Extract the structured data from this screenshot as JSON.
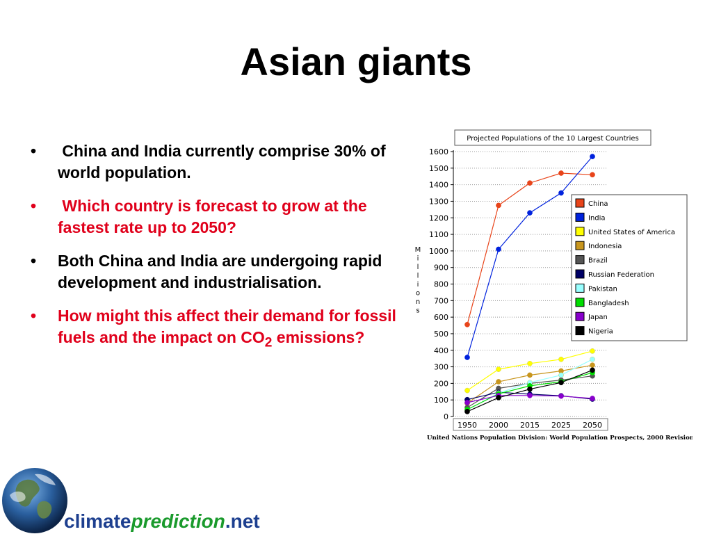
{
  "slide": {
    "title": "Asian giants",
    "bullets": [
      {
        "text": "China and India currently comprise 30% of world population.",
        "color": "#000000"
      },
      {
        "text": "Which country is forecast to grow at the fastest rate up to 2050?",
        "color": "#e0001b"
      },
      {
        "text": "Both China and India are undergoing rapid development and industrialisation.",
        "color": "#000000"
      },
      {
        "text_before": "How might this affect their demand for fossil fuels and the impact on CO",
        "subscript": "2",
        "text_after": " emissions?",
        "color": "#e0001b"
      }
    ]
  },
  "chart_data": {
    "type": "line",
    "title": "Projected Populations of the 10 Largest Countries",
    "ylabel": "Millions",
    "xlabel": "",
    "source": "United Nations Population Division: World Population Prospects, 2000 Revision",
    "categories": [
      "1950",
      "2000",
      "2015",
      "2025",
      "2050"
    ],
    "y_ticks": [
      "0",
      "100",
      "200",
      "300",
      "400",
      "500",
      "600",
      "700",
      "800",
      "900",
      "1000",
      "1100",
      "1200",
      "1300",
      "1400",
      "1500",
      "1600"
    ],
    "ylim": [
      0,
      1600
    ],
    "grid": true,
    "legend_position": "right",
    "series": [
      {
        "name": "China",
        "color": "#e8441a",
        "values": [
          555,
          1275,
          1410,
          1470,
          1460
        ]
      },
      {
        "name": "India",
        "color": "#0022dd",
        "values": [
          357,
          1010,
          1230,
          1350,
          1570
        ]
      },
      {
        "name": "United States of America",
        "color": "#ffff00",
        "values": [
          157,
          285,
          320,
          345,
          395
        ]
      },
      {
        "name": "Indonesia",
        "color": "#c8961e",
        "values": [
          80,
          210,
          250,
          275,
          310
        ]
      },
      {
        "name": "Brazil",
        "color": "#555555",
        "values": [
          54,
          170,
          200,
          220,
          245
        ]
      },
      {
        "name": "Russian Federation",
        "color": "#000066",
        "values": [
          102,
          146,
          135,
          125,
          105
        ]
      },
      {
        "name": "Pakistan",
        "color": "#99ffff",
        "values": [
          40,
          141,
          205,
          250,
          345
        ]
      },
      {
        "name": "Bangladesh",
        "color": "#00dd00",
        "values": [
          42,
          137,
          185,
          210,
          265
        ]
      },
      {
        "name": "Japan",
        "color": "#8800cc",
        "values": [
          84,
          127,
          127,
          123,
          109
        ]
      },
      {
        "name": "Nigeria",
        "color": "#000000",
        "values": [
          30,
          114,
          165,
          205,
          280
        ]
      }
    ]
  },
  "brand": {
    "part1": "climate",
    "part2": "prediction",
    "part3": ".net"
  }
}
